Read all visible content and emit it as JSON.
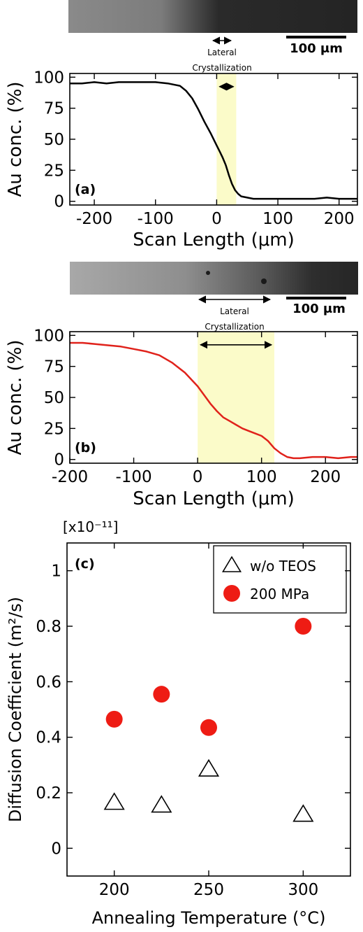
{
  "panels": {
    "a": {
      "micrograph": {
        "scale_label": "100 μm",
        "scale_value_um": 100
      },
      "annotation": "Lateral\nCrystallization",
      "band_um": [
        0,
        32
      ]
    },
    "b": {
      "micrograph": {
        "scale_label": "100 μm",
        "scale_value_um": 100
      },
      "annotation": "Lateral\nCrystallization",
      "band_um": [
        0,
        120
      ]
    }
  },
  "colors": {
    "profile_a": "#000000",
    "profile_b": "#e0221b",
    "band": "#fbfbc9",
    "marker_200mpa": "#ee1c14"
  },
  "chart_data": [
    {
      "id": "a",
      "type": "line",
      "panel_label": "(a)",
      "xlabel": "Scan Length (μm)",
      "ylabel": "Au conc. (%)",
      "xlim": [
        -240,
        230
      ],
      "ylim": [
        -3,
        103
      ],
      "xticks": [
        -200,
        -100,
        0,
        100,
        200
      ],
      "yticks": [
        0,
        25,
        50,
        75,
        100
      ],
      "grid": false,
      "series": [
        {
          "x": [
            -240,
            -220,
            -200,
            -180,
            -160,
            -140,
            -120,
            -100,
            -80,
            -60,
            -50,
            -40,
            -30,
            -20,
            -10,
            0,
            5,
            10,
            15,
            20,
            25,
            30,
            35,
            40,
            50,
            60,
            70,
            80,
            100,
            120,
            140,
            160,
            180,
            200,
            220,
            230
          ],
          "y": [
            95,
            95,
            96,
            95,
            96,
            96,
            96,
            96,
            95,
            93,
            89,
            83,
            74,
            64,
            55,
            45,
            40,
            35,
            29,
            21,
            14,
            9,
            6,
            4,
            3,
            2,
            2,
            2,
            2,
            2,
            2,
            2,
            3,
            2,
            2,
            2
          ]
        }
      ]
    },
    {
      "id": "b",
      "type": "line",
      "panel_label": "(b)",
      "xlabel": "Scan Length (μm)",
      "ylabel": "Au conc. (%)",
      "xlim": [
        -200,
        250
      ],
      "ylim": [
        -3,
        103
      ],
      "xticks": [
        -200,
        -100,
        0,
        100,
        200
      ],
      "yticks": [
        0,
        25,
        50,
        75,
        100
      ],
      "grid": false,
      "series": [
        {
          "x": [
            -200,
            -180,
            -160,
            -140,
            -120,
            -100,
            -80,
            -60,
            -40,
            -20,
            0,
            10,
            20,
            30,
            40,
            50,
            60,
            70,
            80,
            90,
            100,
            110,
            120,
            130,
            140,
            150,
            160,
            180,
            200,
            220,
            240,
            250
          ],
          "y": [
            94,
            94,
            93,
            92,
            91,
            89,
            87,
            84,
            78,
            70,
            59,
            52,
            45,
            39,
            34,
            31,
            28,
            25,
            23,
            21,
            19,
            15,
            9,
            5,
            2,
            1,
            1,
            2,
            2,
            1,
            2,
            2
          ]
        }
      ]
    },
    {
      "id": "c",
      "type": "scatter",
      "panel_label": "(c)",
      "xlabel": "Annealing Temperature (°C)",
      "ylabel": "Diffusion Coefficient (m²/s)",
      "y_multiplier": "[x10⁻¹¹]",
      "xlim": [
        175,
        325
      ],
      "ylim": [
        -0.1,
        1.1
      ],
      "xticks": [
        200,
        250,
        300
      ],
      "yticks": [
        0,
        0.2,
        0.4,
        0.6,
        0.8,
        1
      ],
      "ytick_labels": [
        "0",
        "0.2",
        "0.4",
        "0.6",
        "0.8",
        "1"
      ],
      "grid": false,
      "legend_position": "top-right",
      "series": [
        {
          "name": "w/o TEOS",
          "marker": "triangle-open",
          "x": [
            200,
            225,
            250,
            300
          ],
          "y": [
            0.165,
            0.155,
            0.285,
            0.122
          ]
        },
        {
          "name": "200 MPa",
          "marker": "circle-filled",
          "x": [
            200,
            225,
            250,
            300
          ],
          "y": [
            0.465,
            0.555,
            0.435,
            0.8
          ]
        }
      ]
    }
  ]
}
